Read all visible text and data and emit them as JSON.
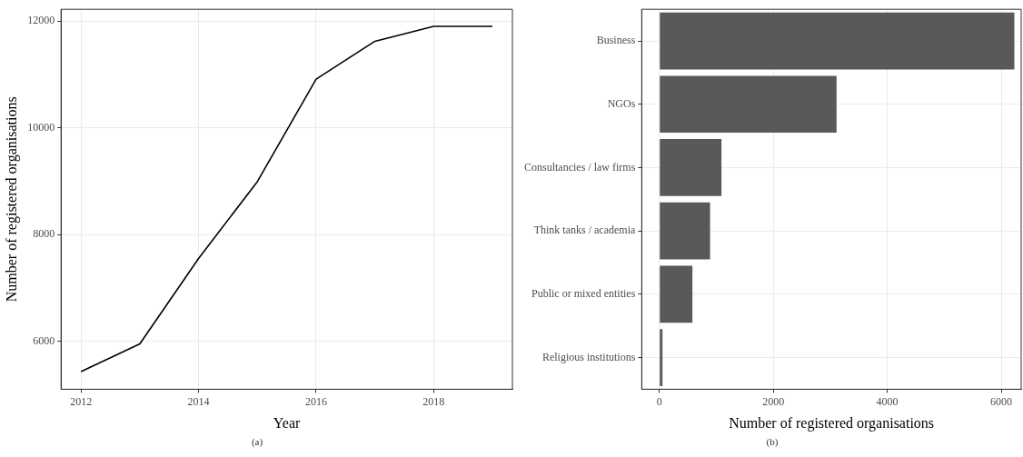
{
  "chart_data": [
    {
      "type": "line",
      "xlabel": "Year",
      "ylabel": "Number of registered organisations",
      "annotations": [
        "(a)"
      ],
      "x": [
        2012,
        2013,
        2014,
        2015,
        2016,
        2017,
        2018,
        2019
      ],
      "series": [
        {
          "color": "#000000",
          "values": [
            5430,
            5950,
            7550,
            8990,
            10910,
            11620,
            11900,
            11900
          ]
        }
      ],
      "xlim": [
        2011.66,
        2019.34
      ],
      "xticks": [
        2012,
        2014,
        2016,
        2018
      ],
      "ylim": [
        5100,
        12220
      ],
      "yticks": [
        6000,
        8000,
        10000,
        12000
      ],
      "grid": true,
      "legend": false,
      "marker": "none",
      "line_style": "solid"
    },
    {
      "type": "bar",
      "orientation": "horizontal",
      "xlabel": "Number of registered organisations",
      "annotations": [
        "(b)"
      ],
      "categories": [
        "Business",
        "NGOs",
        "Consultancies / law firms",
        "Think tanks / academia",
        "Public or mixed entities",
        "Religious institutions"
      ],
      "values": [
        6230,
        3110,
        1090,
        890,
        580,
        55
      ],
      "color": "#595959",
      "xlim": [
        -310,
        6350
      ],
      "xticks": [
        0,
        2000,
        4000,
        6000
      ],
      "grid": true,
      "legend": false
    }
  ]
}
